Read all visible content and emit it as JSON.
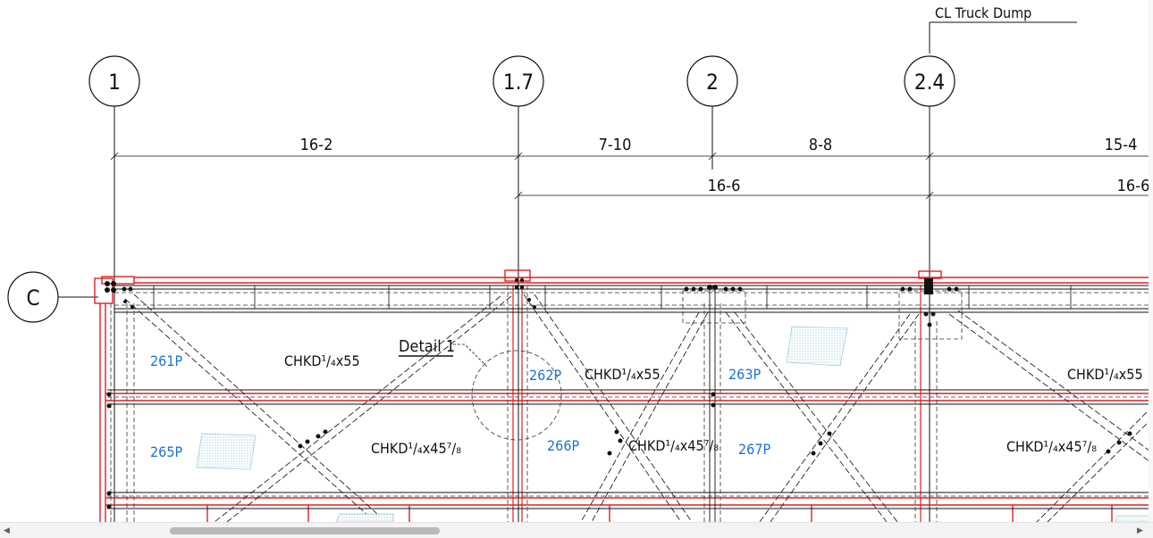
{
  "title_note": "CL Truck Dump",
  "grid_bubbles": {
    "col_1": "1",
    "col_1_7": "1.7",
    "col_2": "2",
    "col_2_4": "2.4",
    "row_c": "C"
  },
  "dimensions": {
    "d_16_2": "16-2",
    "d_7_10": "7-10",
    "d_8_8": "8-8",
    "d_15_4": "15-4",
    "d_16_6_a": "16-6",
    "d_16_6_b": "16-6"
  },
  "detail_label": "Detail 1",
  "panels": {
    "p261": "261P",
    "p262": "262P",
    "p263": "263P",
    "p265": "265P",
    "p266": "266P",
    "p267": "267P"
  },
  "plate_labels": {
    "a": "CHKD¹/₄x55",
    "b": "CHKD¹/₄x55",
    "c": "CHKD¹/₄x55",
    "d": "CHKD¹/₄x45⁷/₈",
    "e": "CHKD¹/₄x45⁷/₈",
    "f": "CHKD¹/₄x45⁷/₈"
  },
  "colors": {
    "beam_red": "#e02020",
    "panel_blue": "#1a73d9",
    "line_black": "#111111",
    "hatch_cyan": "#bfe3e8"
  },
  "scrollbar": {
    "left_arrow": "◀",
    "right_arrow": "▶"
  }
}
